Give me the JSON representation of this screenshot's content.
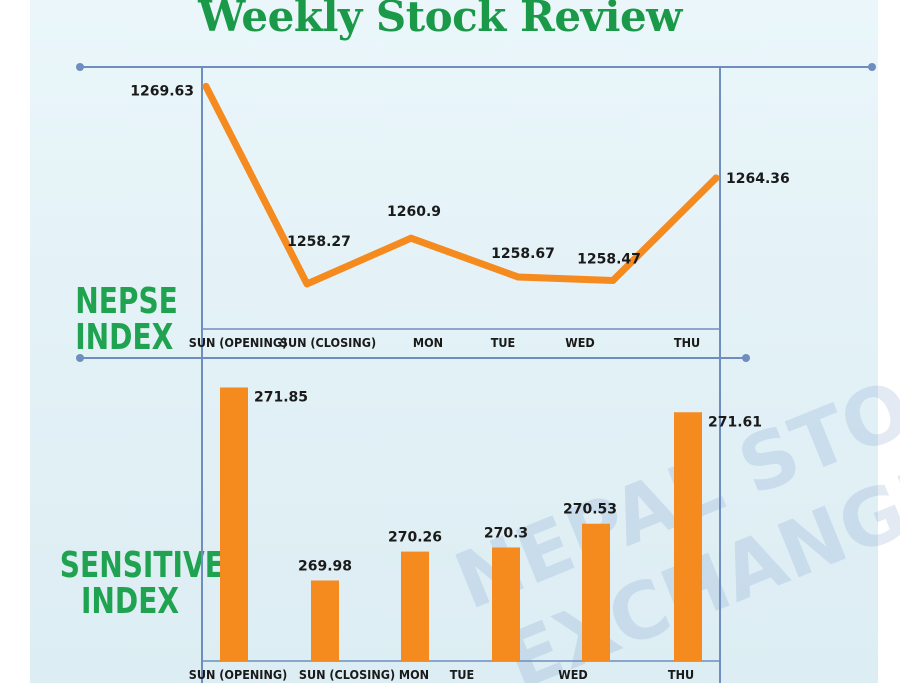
{
  "title": "Weekly Stock Review",
  "watermark": [
    "NEPAL STOCK",
    "EXCHANGE"
  ],
  "colors": {
    "title": "#1a9a48",
    "series": "#f58a1f",
    "frame": "#6f8ebf",
    "label_green": "#1fa350"
  },
  "chart_data": [
    {
      "type": "line",
      "title": "NEPSE INDEX",
      "categories": [
        "SUN (OPENING)",
        "SUN (CLOSING)",
        "MON",
        "TUE",
        "WED",
        "THU"
      ],
      "values": [
        1269.63,
        1258.27,
        1260.9,
        1258.67,
        1258.47,
        1264.36
      ],
      "data_labels": [
        "1269.63",
        "1258.27",
        "1260.9",
        "1258.67",
        "1258.47",
        "1264.36"
      ],
      "ylim": [
        1257,
        1270
      ],
      "grid": false
    },
    {
      "type": "bar",
      "title": "SENSITIVE INDEX",
      "categories": [
        "SUN (OPENING)",
        "SUN (CLOSING)",
        "MON",
        "TUE",
        "WED",
        "THU"
      ],
      "values": [
        271.85,
        269.98,
        270.26,
        270.3,
        270.53,
        271.61
      ],
      "data_labels": [
        "271.85",
        "269.98",
        "270.26",
        "270.3",
        "270.53",
        "271.61"
      ],
      "ylim": [
        269.2,
        272.0
      ],
      "grid": false
    }
  ],
  "labels": {
    "nepse_line1": "NEPSE",
    "nepse_line2": "INDEX",
    "sens_line1": "SENSITIVE",
    "sens_line2": "INDEX"
  }
}
